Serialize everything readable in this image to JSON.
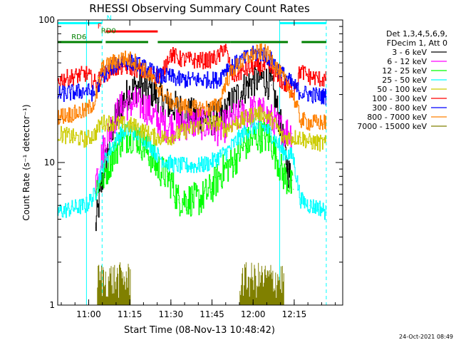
{
  "chart_data": {
    "type": "line",
    "title": "RHESSI Observing Summary Count Rates",
    "xlabel": "Start Time (08-Nov-13 10:48:42)",
    "ylabel": "Count Rate (s⁻¹ detector⁻¹)",
    "y_scale": "log",
    "ylim": [
      1,
      100
    ],
    "xlim_minutes_after_start": [
      0,
      104
    ],
    "x_ticks": [
      {
        "label": "11:00",
        "value": 11.3
      },
      {
        "label": "11:15",
        "value": 26.3
      },
      {
        "label": "11:30",
        "value": 41.3
      },
      {
        "label": "11:45",
        "value": 56.3
      },
      {
        "label": "12:00",
        "value": 71.3
      },
      {
        "label": "12:15",
        "value": 86.3
      }
    ],
    "y_ticks": [
      {
        "label": "1",
        "value": 1
      },
      {
        "label": "10",
        "value": 10
      },
      {
        "label": "100",
        "value": 100
      }
    ],
    "legend_header": [
      "Det 1,3,4,5,6,9,",
      "FDecim 1, Att 0"
    ],
    "legend_position": "right",
    "series": [
      {
        "name": "3 - 6 keV",
        "color": "#000000",
        "points": [
          [
            13.9,
            3.5
          ],
          [
            15,
            4.8
          ],
          [
            17,
            9
          ],
          [
            20,
            17
          ],
          [
            23,
            25
          ],
          [
            26,
            31
          ],
          [
            29,
            34
          ],
          [
            33,
            33
          ],
          [
            36,
            30
          ],
          [
            40,
            26
          ],
          [
            44,
            24
          ],
          [
            48,
            22
          ],
          [
            52,
            21
          ],
          [
            56,
            20
          ],
          [
            59,
            21
          ],
          [
            61,
            22
          ],
          [
            64,
            27
          ],
          [
            68,
            33
          ],
          [
            72,
            38
          ],
          [
            75,
            39
          ],
          [
            78,
            35
          ],
          [
            80,
            25
          ],
          [
            82,
            16
          ],
          [
            84,
            9
          ],
          [
            85.5,
            7.5
          ]
        ]
      },
      {
        "name": "6 - 12 keV",
        "color": "#ff00ff",
        "points": [
          [
            13.9,
            7.5
          ],
          [
            15,
            9
          ],
          [
            17,
            13
          ],
          [
            20,
            19
          ],
          [
            23,
            24
          ],
          [
            26,
            26
          ],
          [
            29,
            26
          ],
          [
            33,
            24
          ],
          [
            36,
            20
          ],
          [
            40,
            18
          ],
          [
            44,
            18
          ],
          [
            48,
            19
          ],
          [
            52,
            19
          ],
          [
            56,
            18
          ],
          [
            59,
            17
          ],
          [
            61,
            18
          ],
          [
            64,
            20
          ],
          [
            68,
            22
          ],
          [
            72,
            23
          ],
          [
            75,
            22
          ],
          [
            78,
            20
          ],
          [
            80,
            18
          ],
          [
            82,
            17
          ],
          [
            85.5,
            16
          ]
        ]
      },
      {
        "name": "12 - 25 keV",
        "color": "#00ff00",
        "points": [
          [
            13.9,
            6
          ],
          [
            15,
            7.5
          ],
          [
            17,
            8
          ],
          [
            20,
            11
          ],
          [
            23,
            14
          ],
          [
            26,
            15.5
          ],
          [
            29,
            15
          ],
          [
            33,
            12
          ],
          [
            36,
            9.5
          ],
          [
            40,
            8
          ],
          [
            42,
            7
          ],
          [
            44,
            5.5
          ],
          [
            48,
            5.5
          ],
          [
            52,
            5.5
          ],
          [
            56,
            6.5
          ],
          [
            59,
            8
          ],
          [
            61,
            9
          ],
          [
            64,
            10
          ],
          [
            68,
            13
          ],
          [
            72,
            15
          ],
          [
            75,
            15.5
          ],
          [
            78,
            14
          ],
          [
            80,
            11
          ],
          [
            82,
            8.5
          ],
          [
            84,
            7.5
          ],
          [
            86,
            6.5
          ]
        ]
      },
      {
        "name": "25 - 50 keV",
        "color": "#00ffff",
        "points": [
          [
            0,
            4.5
          ],
          [
            6,
            4.8
          ],
          [
            10.5,
            5
          ],
          [
            13.9,
            6
          ],
          [
            16,
            9
          ],
          [
            18,
            11
          ],
          [
            20,
            13
          ],
          [
            23,
            16
          ],
          [
            26,
            17
          ],
          [
            29,
            16
          ],
          [
            33,
            14
          ],
          [
            37,
            11
          ],
          [
            40,
            10
          ],
          [
            44,
            9.5
          ],
          [
            48,
            9.5
          ],
          [
            52,
            9.5
          ],
          [
            56,
            10
          ],
          [
            59,
            11
          ],
          [
            62,
            12
          ],
          [
            65,
            14
          ],
          [
            68,
            16
          ],
          [
            72,
            18
          ],
          [
            75,
            18
          ],
          [
            78,
            16
          ],
          [
            80,
            14
          ],
          [
            82,
            12
          ],
          [
            86,
            11
          ],
          [
            88.7,
            5.5
          ],
          [
            92,
            5
          ],
          [
            96,
            4.8
          ],
          [
            98,
            4.5
          ]
        ]
      },
      {
        "name": "50 - 100 keV",
        "color": "#cccc00",
        "points": [
          [
            0,
            16
          ],
          [
            6,
            15
          ],
          [
            10.5,
            14.5
          ],
          [
            13.9,
            16
          ],
          [
            16,
            19
          ],
          [
            20,
            19
          ],
          [
            24,
            18.5
          ],
          [
            28,
            18
          ],
          [
            33,
            16
          ],
          [
            36,
            15
          ],
          [
            41,
            15
          ],
          [
            44,
            16
          ],
          [
            48,
            17
          ],
          [
            52,
            18
          ],
          [
            56,
            19
          ],
          [
            59,
            19
          ],
          [
            61,
            17
          ],
          [
            65,
            19
          ],
          [
            68,
            20
          ],
          [
            72,
            22
          ],
          [
            75,
            22
          ],
          [
            78,
            20
          ],
          [
            80,
            18
          ],
          [
            82,
            15
          ],
          [
            88.7,
            15
          ],
          [
            92,
            14
          ],
          [
            98,
            13.5
          ]
        ]
      },
      {
        "name": "100 - 300 keV",
        "color": "#ff0000",
        "points": [
          [
            0,
            38
          ],
          [
            6,
            40
          ],
          [
            10.5,
            42
          ],
          [
            13.9,
            36
          ],
          [
            16,
            40
          ],
          [
            20,
            45
          ],
          [
            24,
            47
          ],
          [
            28,
            46
          ],
          [
            33,
            42
          ],
          [
            38,
            40
          ],
          [
            41,
            58
          ],
          [
            45,
            53
          ],
          [
            50,
            52
          ],
          [
            55,
            52
          ],
          [
            59,
            55
          ],
          [
            61,
            66
          ],
          [
            64,
            40
          ],
          [
            68,
            44
          ],
          [
            72,
            47
          ],
          [
            75,
            47
          ],
          [
            78,
            45
          ],
          [
            80,
            40
          ],
          [
            83,
            35
          ],
          [
            86,
            32
          ],
          [
            88.7,
            44
          ],
          [
            92,
            40
          ],
          [
            98,
            38
          ]
        ]
      },
      {
        "name": "300 - 800 keV",
        "color": "#0000ff",
        "points": [
          [
            0,
            30
          ],
          [
            6,
            31
          ],
          [
            10.5,
            32
          ],
          [
            13.9,
            30
          ],
          [
            16,
            40
          ],
          [
            20,
            47
          ],
          [
            24,
            52
          ],
          [
            28,
            50
          ],
          [
            33,
            45
          ],
          [
            38,
            40
          ],
          [
            41,
            40
          ],
          [
            45,
            38
          ],
          [
            50,
            38
          ],
          [
            55,
            38
          ],
          [
            59,
            38
          ],
          [
            61,
            45
          ],
          [
            64,
            48
          ],
          [
            68,
            53
          ],
          [
            72,
            58
          ],
          [
            75,
            58
          ],
          [
            78,
            53
          ],
          [
            80,
            47
          ],
          [
            83,
            40
          ],
          [
            86,
            35
          ],
          [
            88.7,
            31
          ],
          [
            92,
            30
          ],
          [
            98,
            29
          ]
        ]
      },
      {
        "name": "800 - 7000 keV",
        "color": "#ff8000",
        "points": [
          [
            0,
            21
          ],
          [
            6,
            22
          ],
          [
            10.5,
            23
          ],
          [
            13.9,
            27
          ],
          [
            16,
            45
          ],
          [
            20,
            50
          ],
          [
            24,
            54
          ],
          [
            28,
            52
          ],
          [
            33,
            42
          ],
          [
            38,
            31
          ],
          [
            41,
            27
          ],
          [
            45,
            25
          ],
          [
            50,
            24
          ],
          [
            55,
            24
          ],
          [
            59,
            25
          ],
          [
            61,
            35
          ],
          [
            64,
            45
          ],
          [
            68,
            52
          ],
          [
            72,
            58
          ],
          [
            75,
            60
          ],
          [
            78,
            55
          ],
          [
            80,
            46
          ],
          [
            83,
            37
          ],
          [
            86,
            30
          ],
          [
            88.7,
            20
          ],
          [
            92,
            19
          ],
          [
            98,
            19
          ]
        ]
      },
      {
        "name": "7000 - 15000 keV",
        "color": "#808000",
        "points": [
          [
            14.5,
            1.95
          ],
          [
            15.5,
            1.2
          ],
          [
            16.5,
            1.9
          ],
          [
            17.5,
            1.15
          ],
          [
            18.5,
            1.95
          ],
          [
            19.5,
            1.2
          ],
          [
            20.5,
            1.85
          ],
          [
            21.5,
            1.15
          ],
          [
            22.5,
            1.9
          ],
          [
            23.5,
            1.2
          ],
          [
            24.5,
            1.95
          ],
          [
            25.5,
            1.15
          ],
          [
            26.5,
            1.9
          ],
          [
            66.5,
            1.95
          ],
          [
            67.5,
            1.15
          ],
          [
            68.5,
            1.9
          ],
          [
            69.5,
            1.2
          ],
          [
            70.5,
            1.95
          ],
          [
            71.5,
            1.15
          ],
          [
            72.5,
            1.85
          ],
          [
            73.5,
            1.2
          ],
          [
            74.5,
            1.95
          ],
          [
            75.5,
            1.15
          ],
          [
            76.5,
            1.9
          ],
          [
            77.5,
            1.2
          ],
          [
            78.5,
            1.95
          ],
          [
            79.5,
            1.15
          ],
          [
            80.5,
            1.9
          ],
          [
            81.5,
            1.2
          ],
          [
            82.5,
            1.95
          ]
        ]
      }
    ],
    "flag_lines": [
      {
        "label": "N",
        "color": "#00ffff",
        "y": 95,
        "label_x": 17.8,
        "segments": [
          [
            0,
            16.2
          ],
          [
            81,
            98
          ]
        ]
      },
      {
        "label": "F",
        "color": "#ff0000",
        "y": 83,
        "label_x": 14.5,
        "segments": [
          [
            17.5,
            36.5
          ]
        ]
      },
      {
        "label": "RD0",
        "color": "#008000",
        "y": 77,
        "label_x": 15.8,
        "segments": []
      },
      {
        "label": "RD6",
        "color": "#008000",
        "y": 70,
        "label_x": 5,
        "segments": [
          [
            0,
            16.2
          ],
          [
            17.5,
            33
          ],
          [
            36.5,
            63
          ],
          [
            63,
            84
          ],
          [
            89,
            98
          ]
        ]
      }
    ],
    "cyan_vertical_lines": [
      {
        "x": 10.5,
        "style": "solid"
      },
      {
        "x": 16.2,
        "style": "dashed"
      },
      {
        "x": 81,
        "style": "solid"
      },
      {
        "x": 98,
        "style": "dashed"
      }
    ],
    "footer_stamp": "24-Oct-2021 08:49"
  }
}
